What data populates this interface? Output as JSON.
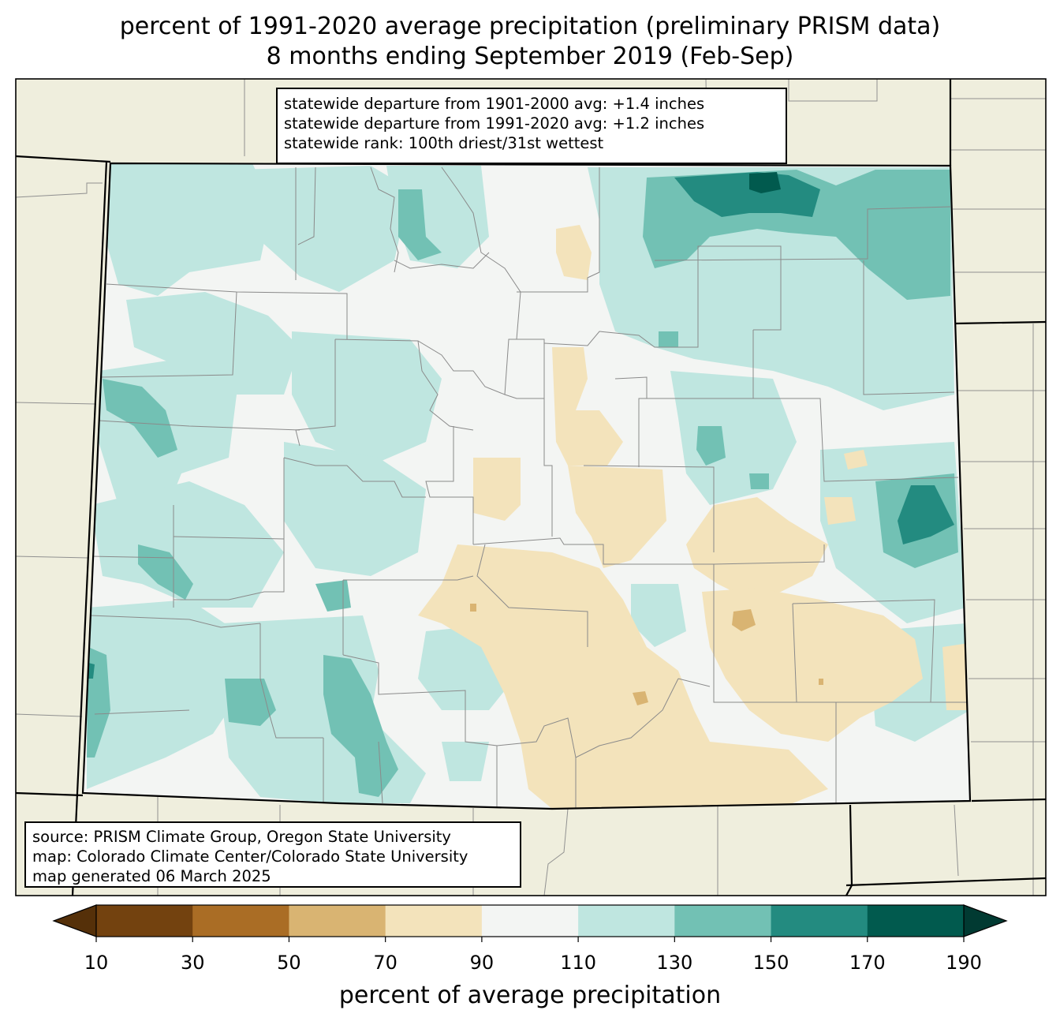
{
  "title": {
    "line1": "percent of 1991-2020 average precipitation (preliminary PRISM data)",
    "line2": "8 months ending September 2019 (Feb-Sep)"
  },
  "stats_box": [
    "statewide departure from 1901-2000 avg: +1.4 inches",
    "statewide departure from 1991-2020 avg: +1.2 inches",
    "statewide rank: 100th driest/31st wettest"
  ],
  "credits_box": [
    "source: PRISM Climate Group, Oregon State University",
    "map: Colorado Climate Center/Colorado State University",
    "map generated 06 March 2025"
  ],
  "colorbar": {
    "label": "percent of average precipitation",
    "ticks": [
      "10",
      "30",
      "50",
      "70",
      "90",
      "110",
      "130",
      "150",
      "170",
      "190"
    ],
    "colors": [
      "#73420f",
      "#aa6d25",
      "#d9b472",
      "#f3e3bb",
      "#f3f5f3",
      "#bfe6e0",
      "#72c1b4",
      "#238b80",
      "#015a4e"
    ],
    "under_color": "#553009",
    "over_color": "#013a32"
  },
  "colors": {
    "surroundings": "#efeedd",
    "state_base": "#f3f5f3",
    "below_normal": "#f3e3bb",
    "below_normal_dark": "#d9b472",
    "above_normal": "#bfe6e0",
    "above_normal_mid": "#72c1b4",
    "above_normal_dark": "#238b80",
    "above_normal_max": "#015a4e"
  }
}
